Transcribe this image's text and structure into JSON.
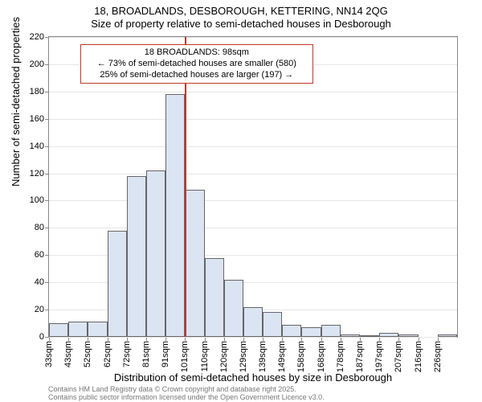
{
  "title_main": "18, BROADLANDS, DESBOROUGH, KETTERING, NN14 2QG",
  "title_sub": "Size of property relative to semi-detached houses in Desborough",
  "chart": {
    "type": "histogram",
    "x_tick_labels": [
      "33sqm",
      "43sqm",
      "52sqm",
      "62sqm",
      "72sqm",
      "81sqm",
      "91sqm",
      "101sqm",
      "110sqm",
      "120sqm",
      "129sqm",
      "139sqm",
      "149sqm",
      "158sqm",
      "168sqm",
      "178sqm",
      "187sqm",
      "197sqm",
      "207sqm",
      "216sqm",
      "226sqm"
    ],
    "values": [
      10,
      11,
      11,
      78,
      118,
      122,
      178,
      108,
      58,
      42,
      22,
      18,
      9,
      7,
      9,
      2,
      1,
      3,
      2,
      0,
      2
    ],
    "bar_color": "#dbe4f3",
    "bar_border_color": "#666666",
    "background_color": "#ffffff",
    "grid_color": "#e6e6e6",
    "plot_border_color": "#888888",
    "ylim": [
      0,
      220
    ],
    "ytick_step": 20,
    "ylabel": "Number of semi-detached properties",
    "xlabel": "Distribution of semi-detached houses by size in Desborough",
    "reference_line": {
      "index_after_bar": 7,
      "color": "#c0392b",
      "width": 2
    },
    "annotation": {
      "lines": [
        "18 BROADLANDS: 98sqm",
        "← 73% of semi-detached houses are smaller (580)",
        "25% of semi-detached houses are larger (197) →"
      ],
      "border_color": "#c0392b",
      "background_color": "rgba(255,255,255,0.9)"
    },
    "title_fontsize": 13,
    "label_fontsize": 13,
    "tick_fontsize": 11,
    "annotation_fontsize": 11
  },
  "credit": {
    "line1": "Contains HM Land Registry data © Crown copyright and database right 2025.",
    "line2": "Contains public sector information licensed under the Open Government Licence v3.0."
  }
}
